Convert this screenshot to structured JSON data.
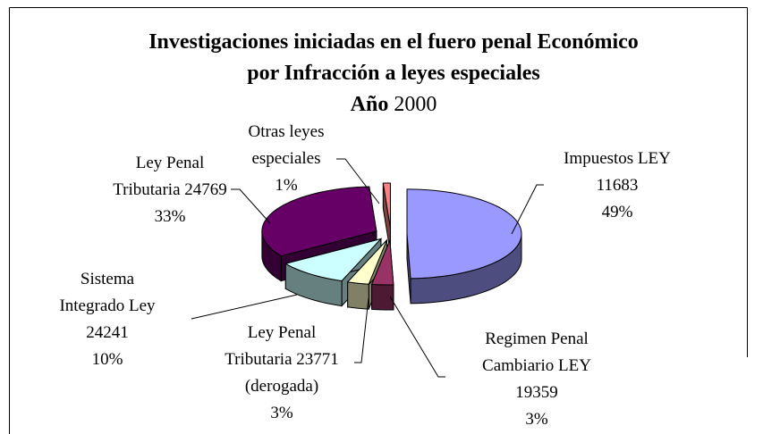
{
  "chart_data": {
    "type": "pie",
    "title": [
      "Investigaciones iniciadas en el fuero penal Económico",
      "por Infracción a leyes especiales"
    ],
    "subtitle": {
      "bold": "Año",
      "text": "2000"
    },
    "categories": [
      "Impuestos LEY 11683",
      "Regimen Penal Cambiario LEY 19359",
      "Ley Penal Tributaria 23771 (derogada)",
      "Sistema Integrado Ley 24241",
      "Ley Penal Tributaria 24769",
      "Otras leyes especiales"
    ],
    "values": [
      49,
      3,
      3,
      10,
      33,
      1
    ],
    "value_labels": [
      "49%",
      "3%",
      "3%",
      "10%",
      "33%",
      "1%"
    ],
    "colors": [
      "#9999ff",
      "#993366",
      "#ffffcc",
      "#ccffff",
      "#660066",
      "#ff8080"
    ],
    "exploded": true,
    "three_d": true
  }
}
